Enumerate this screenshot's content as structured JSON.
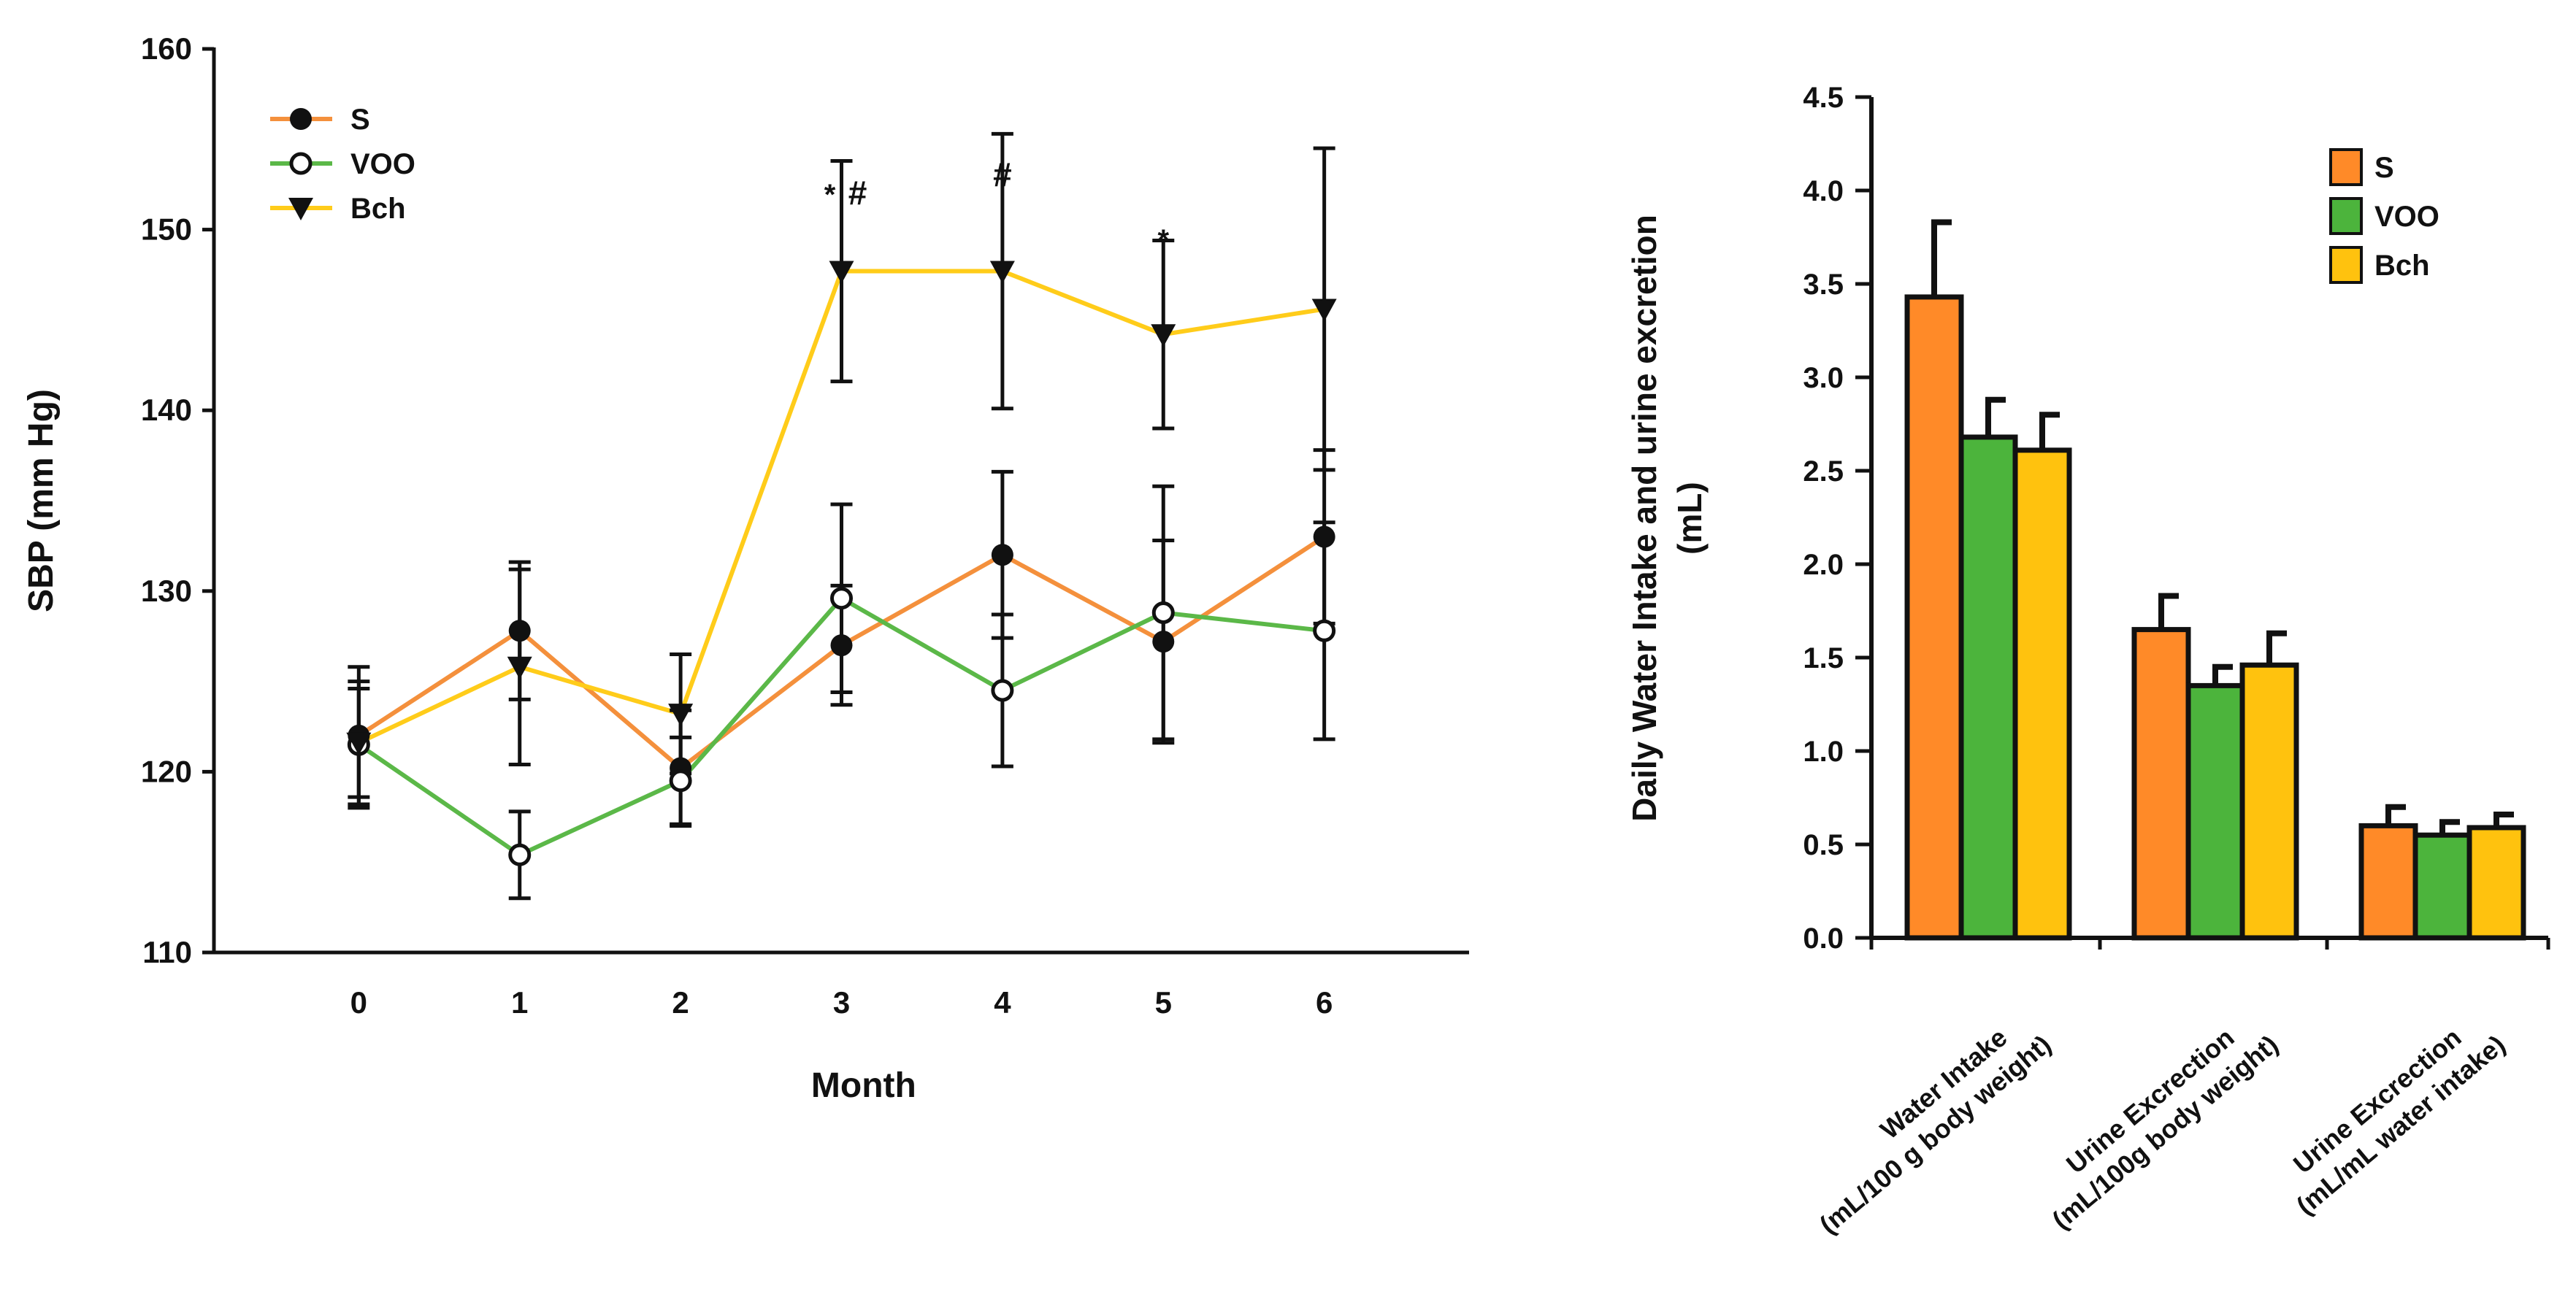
{
  "chart_data": [
    {
      "type": "line",
      "title": "",
      "xlabel": "Month",
      "ylabel": "SBP (mm Hg)",
      "x": [
        0,
        1,
        2,
        3,
        4,
        5,
        6
      ],
      "xticks": [
        "0",
        "1",
        "2",
        "3",
        "4",
        "5",
        "6"
      ],
      "xlim": [
        -0.9,
        6.9
      ],
      "ylim": [
        110,
        160
      ],
      "yticks": [
        "110",
        "120",
        "130",
        "140",
        "150",
        "160"
      ],
      "grid": false,
      "legend_position": "top-left",
      "series": [
        {
          "name": "S",
          "marker": "filled-circle",
          "color": "#F4903C",
          "values": [
            122,
            127.8,
            120.2,
            127,
            132,
            127.2,
            133
          ],
          "errors": [
            3.8,
            3.8,
            3.2,
            3.3,
            4.6,
            5.6,
            4.8
          ]
        },
        {
          "name": "VOO",
          "marker": "open-circle",
          "color": "#5BB848",
          "values": [
            121.5,
            115.4,
            119.5,
            129.6,
            124.5,
            128.8,
            127.8
          ],
          "errors": [
            3.5,
            2.4,
            2.4,
            5.2,
            4.2,
            7.0,
            6.0
          ]
        },
        {
          "name": "Bch",
          "marker": "filled-triangle-down",
          "color": "#FFCC1A",
          "values": [
            121.6,
            125.8,
            123.2,
            147.7,
            147.7,
            144.2,
            145.6
          ],
          "errors": [
            3.0,
            5.4,
            3.3,
            6.1,
            7.6,
            5.2,
            8.9
          ]
        }
      ],
      "annotations": [
        {
          "x": 3,
          "y": 151.4,
          "text": "*"
        },
        {
          "x": 3,
          "y": 151.4,
          "text": "#"
        },
        {
          "x": 4,
          "y": 152.4,
          "text": "#"
        },
        {
          "x": 5,
          "y": 148.9,
          "text": "*"
        }
      ]
    },
    {
      "type": "bar",
      "title": "",
      "xlabel": "",
      "ylabel": "Daily Water Intake and urine excretion (mL)",
      "ylabel_lines": [
        "Daily Water Intake and urine excretion",
        "(mL)"
      ],
      "categories": [
        [
          "Water Intake",
          "(mL/100 g body weight)"
        ],
        [
          "Urine Excrection",
          "(mL/100g body weight)"
        ],
        [
          "Urine Excrection",
          "(mL/mL water intake)"
        ]
      ],
      "ylim": [
        0,
        4.5
      ],
      "yticks": [
        "0.0",
        "0.5",
        "1.0",
        "1.5",
        "2.0",
        "2.5",
        "3.0",
        "3.5",
        "4.0",
        "4.5"
      ],
      "grid": false,
      "legend_position": "top-right",
      "series": [
        {
          "name": "S",
          "color": "#FF8A28",
          "values": [
            3.43,
            1.65,
            0.6
          ],
          "errors": [
            0.4,
            0.18,
            0.1
          ]
        },
        {
          "name": "VOO",
          "color": "#4CB43C",
          "values": [
            2.68,
            1.35,
            0.55
          ],
          "errors": [
            0.2,
            0.1,
            0.07
          ]
        },
        {
          "name": "Bch",
          "color": "#FFC20E",
          "values": [
            2.61,
            1.46,
            0.59
          ],
          "errors": [
            0.19,
            0.17,
            0.07
          ]
        }
      ]
    }
  ]
}
